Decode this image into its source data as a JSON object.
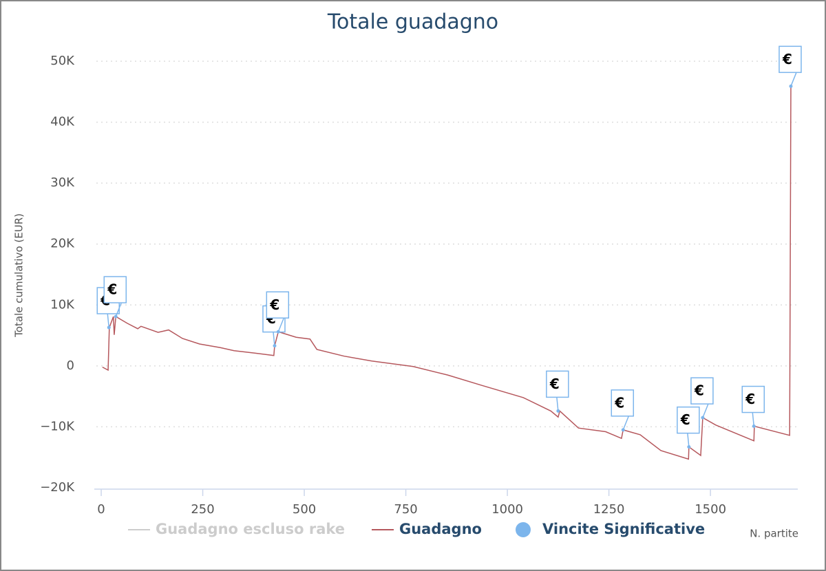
{
  "chart_data": {
    "type": "line",
    "title": "Totale guadagno",
    "y_label": "Totale cumulativo (EUR)",
    "x_label": "N. partite",
    "xlim": [
      -17,
      1715
    ],
    "ylim": [
      -20000,
      50000
    ],
    "xticks": [
      0,
      250,
      500,
      750,
      1000,
      1250,
      1500
    ],
    "yticks": [
      {
        "value": -20000,
        "label": "−20K"
      },
      {
        "value": -10000,
        "label": "−10K"
      },
      0,
      {
        "value": 10000,
        "label": "10K"
      },
      {
        "value": 20000,
        "label": "20K"
      },
      {
        "value": 30000,
        "label": "30K"
      },
      {
        "value": 40000,
        "label": "40K"
      },
      {
        "value": 50000,
        "label": "50K"
      }
    ],
    "grid": true,
    "series": [
      {
        "name": "Guadagno escluso rake",
        "color": "#cccccc",
        "visible": false
      },
      {
        "name": "Guadagno",
        "color": "#b5575c",
        "x": [
          3,
          17,
          20,
          30,
          32,
          36,
          64,
          90,
          98,
          140,
          166,
          200,
          242,
          293,
          327,
          378,
          425,
          427,
          436,
          480,
          514,
          531,
          598,
          666,
          768,
          853,
          937,
          1039,
          1107,
          1125,
          1129,
          1175,
          1242,
          1281,
          1285,
          1327,
          1378,
          1446,
          1447,
          1476,
          1481,
          1513,
          1607,
          1608,
          1695,
          1698
        ],
        "values": [
          -200,
          -700,
          6300,
          8100,
          5100,
          8100,
          7000,
          6100,
          6500,
          5500,
          5900,
          4500,
          3600,
          3000,
          2500,
          2100,
          1700,
          3300,
          5600,
          4700,
          4400,
          2700,
          1600,
          800,
          -100,
          -1500,
          -3200,
          -5200,
          -7400,
          -8400,
          -7400,
          -10200,
          -10800,
          -11900,
          -10500,
          -11300,
          -13900,
          -15300,
          -13300,
          -14700,
          -8500,
          -9700,
          -12300,
          -9900,
          -11400,
          45900
        ]
      },
      {
        "name": "Vincite Significative",
        "color": "#7cb5ec",
        "type": "scatter",
        "marker_label": "€",
        "x": [
          19,
          36,
          427,
          436,
          1125,
          1285,
          1447,
          1481,
          1607,
          1698
        ],
        "values": [
          6300,
          8100,
          3300,
          5600,
          -7400,
          -10500,
          -13300,
          -8500,
          -9900,
          45900
        ]
      }
    ]
  }
}
